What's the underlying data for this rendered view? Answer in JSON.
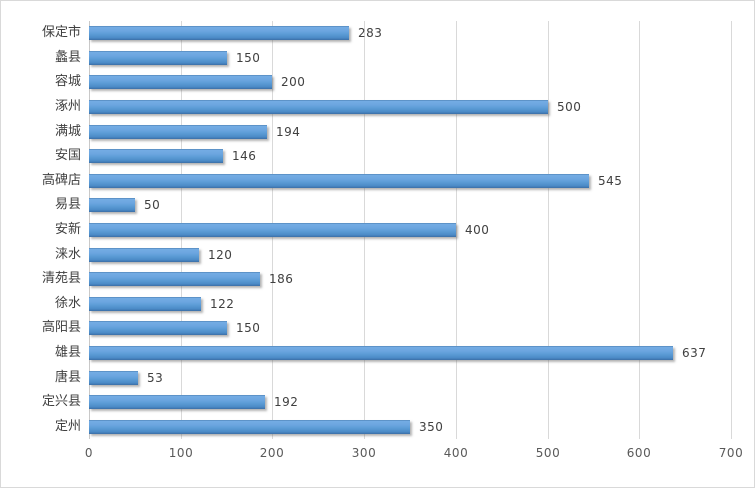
{
  "chart_data": {
    "type": "bar",
    "orientation": "horizontal",
    "title": "",
    "xlabel": "",
    "ylabel": "",
    "categories": [
      "保定市",
      "蠡县",
      "容城",
      "涿州",
      "满城",
      "安国",
      "高碑店",
      "易县",
      "安新",
      "涞水",
      "清苑县",
      "徐水",
      "高阳县",
      "雄县",
      "唐县",
      "定兴县",
      "定州"
    ],
    "values": [
      283,
      150,
      200,
      500,
      194,
      146,
      545,
      50,
      400,
      120,
      186,
      122,
      150,
      637,
      53,
      192,
      350
    ],
    "xlim": [
      0,
      700
    ],
    "xticks": [
      "0",
      "100",
      "200",
      "300",
      "400",
      "500",
      "600",
      "700"
    ],
    "grid": true,
    "legend": false,
    "value_labels_shown": true,
    "colors": {
      "bar": "#5b9bd5",
      "bar_gradient_top": "#74ace4",
      "bar_gradient_upper": "#6ca6e0",
      "bar_gradient_lower": "#4b8ac6",
      "bar_gradient_bottom": "#3b6fa6",
      "bar_top_edge": "#4a7fb2",
      "gridline": "#d9d9d9",
      "axis_line": "#c9c9c9",
      "category_label": "#404040",
      "value_label": "#404040",
      "tick_label": "#595959",
      "background": "#ffffff",
      "frame_border": "#d9d9d9"
    }
  }
}
